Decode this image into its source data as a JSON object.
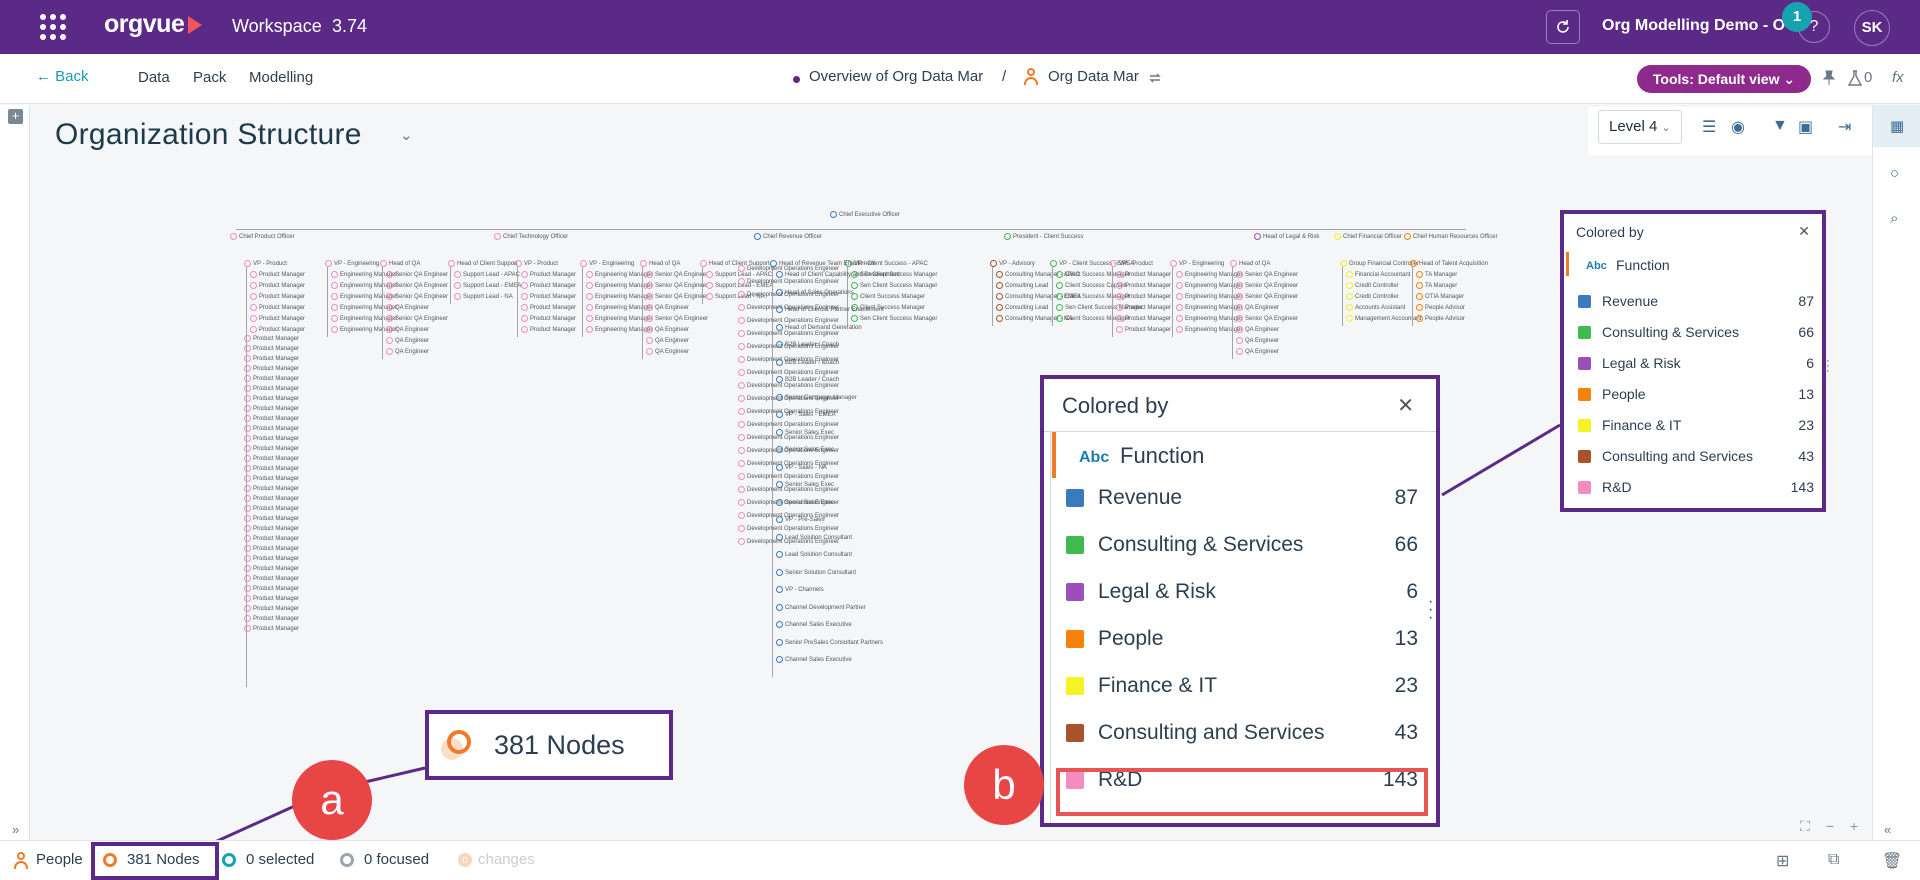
{
  "topbar": {
    "logo": "orgvue",
    "workspace_label": "Workspace",
    "version": "3.74",
    "project": "Org Modelling Demo - OV",
    "notifications": "1",
    "help": "?",
    "avatar_initials": "SK"
  },
  "navbar": {
    "back": "← Back",
    "menu": [
      "Data",
      "Pack",
      "Modelling"
    ],
    "breadcrumb_dataset": "Overview of Org Data Mar",
    "breadcrumb_sep": "/",
    "breadcrumb_view": "Org Data Mar",
    "tools_button": "Tools: Default view ⌄",
    "ab_count": "0",
    "fx": "fx"
  },
  "main": {
    "title": "Organization Structure",
    "level": "Level 4"
  },
  "legend": {
    "title": "Colored by",
    "property_type": "Abc",
    "property": "Function",
    "items": [
      {
        "label": "Revenue",
        "count": "87",
        "color": "#3a7abf"
      },
      {
        "label": "Consulting & Services",
        "count": "66",
        "color": "#3fb950"
      },
      {
        "label": "Legal & Risk",
        "count": "6",
        "color": "#9b4fb8"
      },
      {
        "label": "People",
        "count": "13",
        "color": "#f5820d"
      },
      {
        "label": "Finance & IT",
        "count": "23",
        "color": "#f5f226"
      },
      {
        "label": "Consulting and Services",
        "count": "43",
        "color": "#a8532c"
      },
      {
        "label": "R&D",
        "count": "143",
        "color": "#f48cc0"
      }
    ]
  },
  "callouts": {
    "nodes": "381 Nodes",
    "a": "a",
    "b": "b"
  },
  "statusbar": {
    "people": "People",
    "nodes": "381 Nodes",
    "selected": "0 selected",
    "focused": "0 focused",
    "changes": "changes"
  },
  "orgchart": {
    "root": "Chief Executive Officer",
    "heads": [
      "Chief Product Officer",
      "Chief Technology Officer",
      "Chief Revenue Officer",
      "President - Client Success",
      "Head of Legal & Risk",
      "Chief Financial Officer",
      "Chief Human Resources Officer"
    ],
    "columns": [
      {
        "title": "VP - Product",
        "color": "#f48cc0",
        "items": [
          "Product Manager",
          "Product Manager",
          "Product Manager",
          "Product Manager",
          "Product Manager",
          "Product Manager"
        ]
      },
      {
        "title": "VP - Engineering",
        "color": "#f48cc0",
        "items": [
          "Engineering Manager",
          "Engineering Manager",
          "Engineering Manager",
          "Engineering Manager",
          "Engineering Manager",
          "Engineering Manager"
        ]
      },
      {
        "title": "Head of QA",
        "color": "#f48cc0",
        "items": [
          "Senior QA Engineer",
          "Senior QA Engineer",
          "Senior QA Engineer",
          "QA Engineer",
          "Senior QA Engineer",
          "QA Engineer",
          "QA Engineer",
          "QA Engineer"
        ]
      },
      {
        "title": "Head of Client Support",
        "color": "#f48cc0",
        "items": [
          "Support Lead - APAC",
          "Support Lead - EMEA",
          "Support Lead - NA"
        ]
      },
      {
        "title": "VP - Client Success - APAC",
        "color": "#3fb950",
        "items": [
          "Sen Client Success Manager",
          "Sen Client Success Manager",
          "Client Success Manager",
          "Client Success Manager",
          "Sen Client Success Manager"
        ]
      },
      {
        "title": "VP - Advisory",
        "color": "#a8532c",
        "items": [
          "Consulting Manager - APAC",
          "Consulting Lead",
          "Consulting Manager - EMEA",
          "Consulting Lead",
          "Consulting Manager - NA"
        ]
      },
      {
        "title": "VP - Client Success - EMEA",
        "color": "#3fb950",
        "items": [
          "Client Success Manager",
          "Client Success Captain",
          "Client Success Manager",
          "Sen Client Success Manager",
          "Client Success Manager"
        ]
      },
      {
        "title": "Group Financial Controller",
        "color": "#f5f226",
        "items": [
          "Financial Accountant",
          "Credit Controller",
          "Credit Controller",
          "Accounts Assistant",
          "Management Accountant"
        ]
      },
      {
        "title": "Head of Talent Acquisition",
        "color": "#f5820d",
        "items": [
          "TA Manager",
          "TA Manager",
          "OTIA Manager",
          "People Advisor",
          "People Advisor"
        ]
      }
    ],
    "revenue_column": {
      "title": "Head of Revenue Team Enablement",
      "color": "#3a7abf",
      "items": [
        "Head of Client Capability and Development",
        "Head of Sales Operations",
        "Head of Client & Partner Enablement",
        "Head of Demand Generation",
        "B2B Leader / Coach",
        "B2B Leader / Coach",
        "B2B Leader / Coach",
        "Senior Campaign Manager",
        "VP - Sales - EMEA",
        "Senior Sales Exec",
        "Senior Sales Exec",
        "VP - Sales - NA",
        "Senior Sales Exec",
        "Senior Sales Exec",
        "VP - Pre-Sales",
        "Lead Solution Consultant",
        "Lead Solution Consultant",
        "Senior Solution Consultant",
        "VP - Channels",
        "Channel Development Partner",
        "Channel Sales Executive",
        "Senior PreSales Consultant Partners",
        "Channel Sales Executive"
      ]
    }
  }
}
